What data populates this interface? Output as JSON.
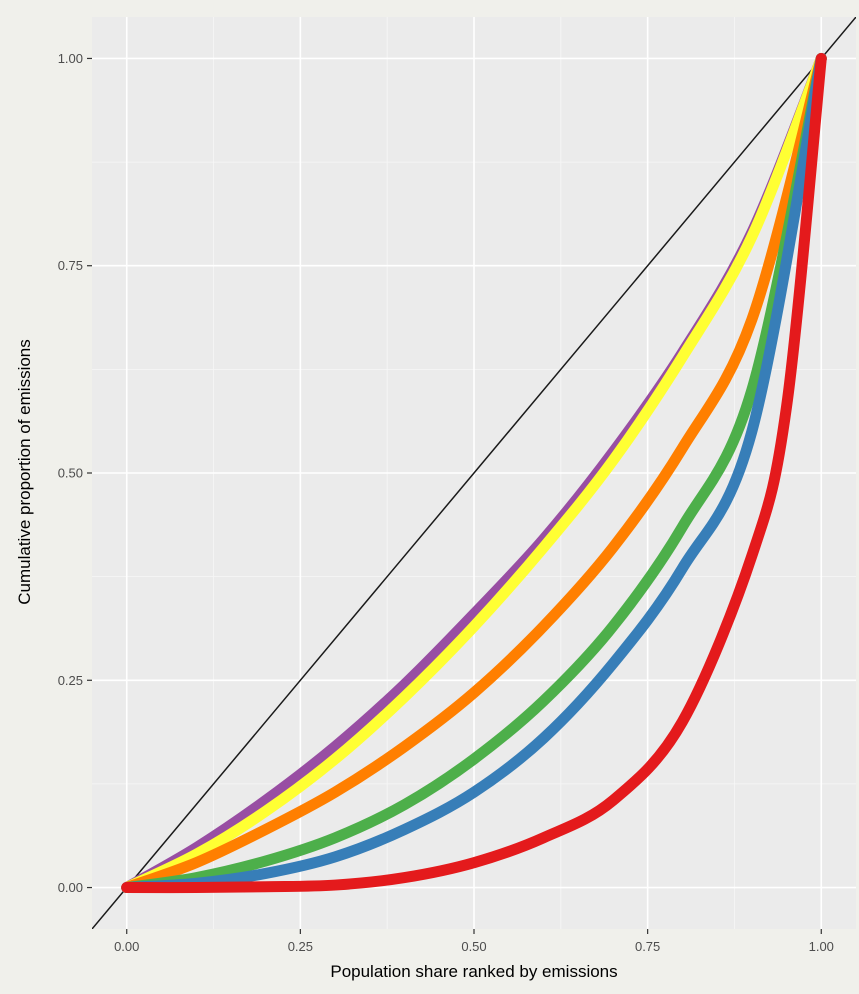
{
  "chart_data": {
    "type": "line",
    "title": "",
    "xlabel": "Population share ranked by emissions",
    "ylabel": "Cumulative proportion of emissions",
    "xlim": [
      -0.05,
      1.05
    ],
    "ylim": [
      -0.05,
      1.05
    ],
    "x_ticks": [
      0,
      0.25,
      0.5,
      0.75,
      1
    ],
    "x_tick_labels": [
      "0.00",
      "0.25",
      "0.50",
      "0.75",
      "1.00"
    ],
    "y_ticks": [
      0,
      0.25,
      0.5,
      0.75,
      1
    ],
    "y_tick_labels": [
      "0.00",
      "0.25",
      "0.50",
      "0.75",
      "1.00"
    ],
    "grid": true,
    "legend": "none",
    "reference_line": {
      "x": [
        0,
        1
      ],
      "y": [
        0,
        1
      ],
      "color": "#1a1a1a"
    },
    "series": [
      {
        "color": "#984ea3",
        "x": [
          0,
          0.1,
          0.2,
          0.3,
          0.4,
          0.5,
          0.6,
          0.7,
          0.8,
          0.9,
          1.0
        ],
        "y": [
          0,
          0.048,
          0.105,
          0.17,
          0.245,
          0.33,
          0.42,
          0.525,
          0.645,
          0.79,
          1.0
        ]
      },
      {
        "color": "#ffff33",
        "x": [
          0,
          0.1,
          0.2,
          0.3,
          0.4,
          0.5,
          0.6,
          0.7,
          0.8,
          0.9,
          1.0
        ],
        "y": [
          0,
          0.04,
          0.092,
          0.155,
          0.23,
          0.315,
          0.41,
          0.515,
          0.64,
          0.785,
          1.0
        ]
      },
      {
        "color": "#ff7f00",
        "x": [
          0,
          0.1,
          0.2,
          0.3,
          0.4,
          0.5,
          0.6,
          0.7,
          0.8,
          0.9,
          1.0
        ],
        "y": [
          0,
          0.03,
          0.07,
          0.115,
          0.17,
          0.235,
          0.315,
          0.41,
          0.53,
          0.685,
          1.0
        ]
      },
      {
        "color": "#4daf4a",
        "x": [
          0,
          0.1,
          0.2,
          0.3,
          0.4,
          0.5,
          0.6,
          0.7,
          0.8,
          0.9,
          1.0
        ],
        "y": [
          0,
          0.012,
          0.032,
          0.06,
          0.1,
          0.155,
          0.225,
          0.315,
          0.435,
          0.6,
          1.0
        ]
      },
      {
        "color": "#377eb8",
        "x": [
          0,
          0.1,
          0.2,
          0.3,
          0.4,
          0.5,
          0.6,
          0.7,
          0.8,
          0.9,
          1.0
        ],
        "y": [
          0,
          0.005,
          0.017,
          0.037,
          0.07,
          0.115,
          0.18,
          0.27,
          0.385,
          0.55,
          1.0
        ]
      },
      {
        "color": "#e41a1c",
        "x": [
          0,
          0.1,
          0.2,
          0.3,
          0.4,
          0.5,
          0.6,
          0.7,
          0.8,
          0.9,
          0.95,
          1.0
        ],
        "y": [
          0,
          0.0,
          0.001,
          0.003,
          0.012,
          0.03,
          0.06,
          0.105,
          0.2,
          0.4,
          0.58,
          1.0
        ]
      }
    ]
  }
}
